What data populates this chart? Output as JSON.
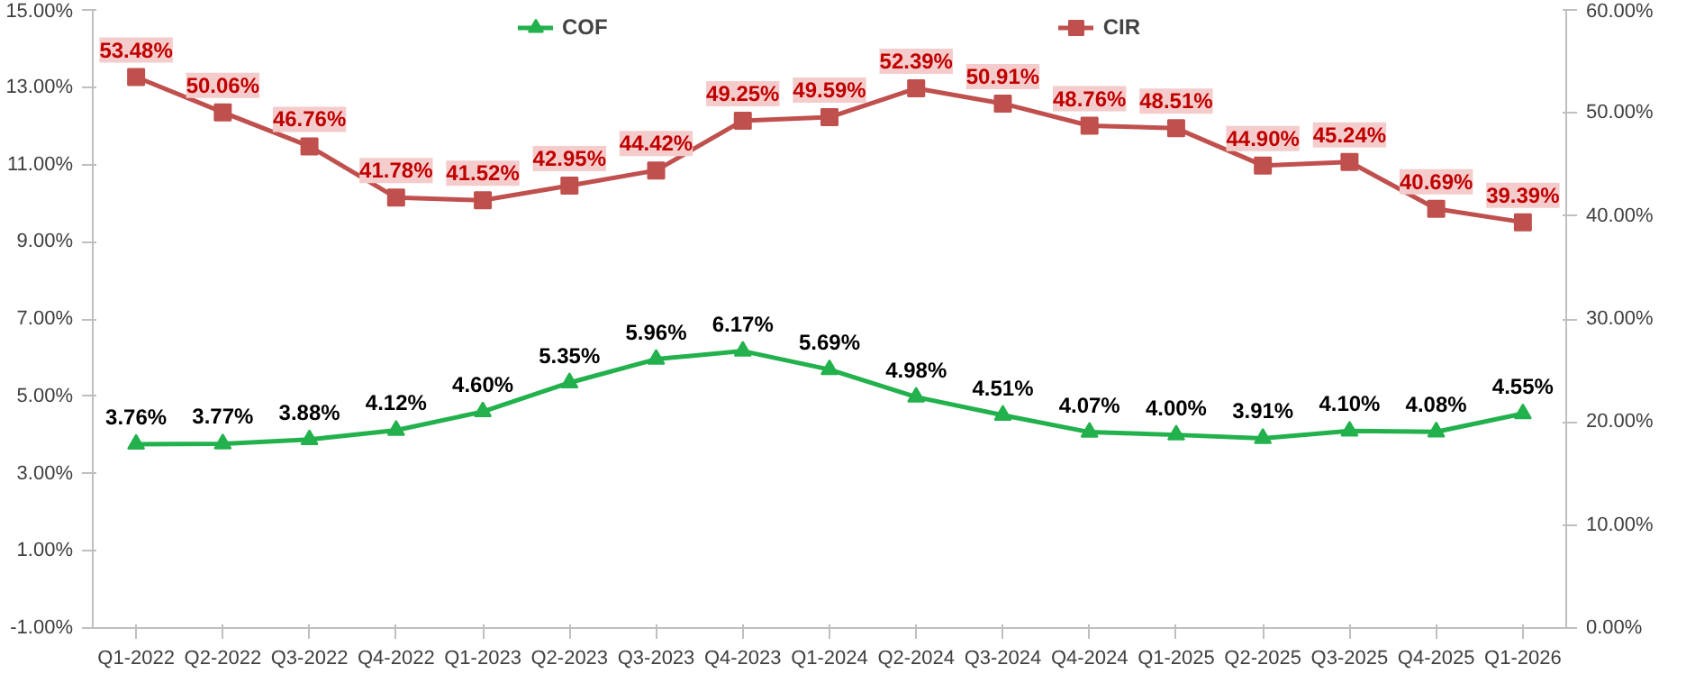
{
  "chart_data": {
    "type": "line",
    "categories": [
      "Q1-2022",
      "Q2-2022",
      "Q3-2022",
      "Q4-2022",
      "Q1-2023",
      "Q2-2023",
      "Q3-2023",
      "Q4-2023",
      "Q1-2024",
      "Q2-2024",
      "Q3-2024",
      "Q4-2024",
      "Q1-2025",
      "Q2-2025",
      "Q3-2025",
      "Q4-2025",
      "Q1-2026"
    ],
    "series": [
      {
        "name": "COF",
        "color": "#22b14c",
        "marker": "triangle",
        "values": [
          3.76,
          3.77,
          3.88,
          4.12,
          4.6,
          5.35,
          5.96,
          6.17,
          5.69,
          4.98,
          4.51,
          4.07,
          4.0,
          3.91,
          4.1,
          4.08,
          4.55
        ],
        "value_labels": [
          "3.76%",
          "3.77%",
          "3.88%",
          "4.12%",
          "4.60%",
          "5.35%",
          "5.96%",
          "6.17%",
          "5.69%",
          "4.98%",
          "4.51%",
          "4.07%",
          "4.00%",
          "3.91%",
          "4.10%",
          "4.08%",
          "4.55%"
        ]
      },
      {
        "name": "CIR",
        "color": "#c0504d",
        "marker": "square",
        "axis": "y2",
        "values": [
          53.48,
          50.06,
          46.76,
          41.78,
          41.52,
          42.95,
          44.42,
          49.25,
          49.59,
          52.39,
          50.91,
          48.76,
          48.51,
          44.9,
          45.24,
          40.69,
          39.39
        ],
        "value_labels": [
          "53.48%",
          "50.06%",
          "46.76%",
          "41.78%",
          "41.52%",
          "42.95%",
          "44.42%",
          "49.25%",
          "49.59%",
          "52.39%",
          "50.91%",
          "48.76%",
          "48.51%",
          "44.90%",
          "45.24%",
          "40.69%",
          "39.39%"
        ]
      }
    ],
    "ylim": [
      -1,
      15
    ],
    "yticks": [
      {
        "value": -1,
        "label": "-1.00%"
      },
      {
        "value": 1,
        "label": "1.00%"
      },
      {
        "value": 3,
        "label": "3.00%"
      },
      {
        "value": 5,
        "label": "5.00%"
      },
      {
        "value": 7,
        "label": "7.00%"
      },
      {
        "value": 9,
        "label": "9.00%"
      },
      {
        "value": 11,
        "label": "11.00%"
      },
      {
        "value": 13,
        "label": "13.00%"
      },
      {
        "value": 15,
        "label": "15.00%"
      }
    ],
    "y2lim": [
      0,
      60
    ],
    "y2ticks": [
      {
        "value": 0,
        "label": "0.00%"
      },
      {
        "value": 10,
        "label": "10.00%"
      },
      {
        "value": 20,
        "label": "20.00%"
      },
      {
        "value": 30,
        "label": "30.00%"
      },
      {
        "value": 40,
        "label": "40.00%"
      },
      {
        "value": 50,
        "label": "50.00%"
      },
      {
        "value": 60,
        "label": "60.00%"
      }
    ],
    "legend": "top",
    "grid": false
  }
}
